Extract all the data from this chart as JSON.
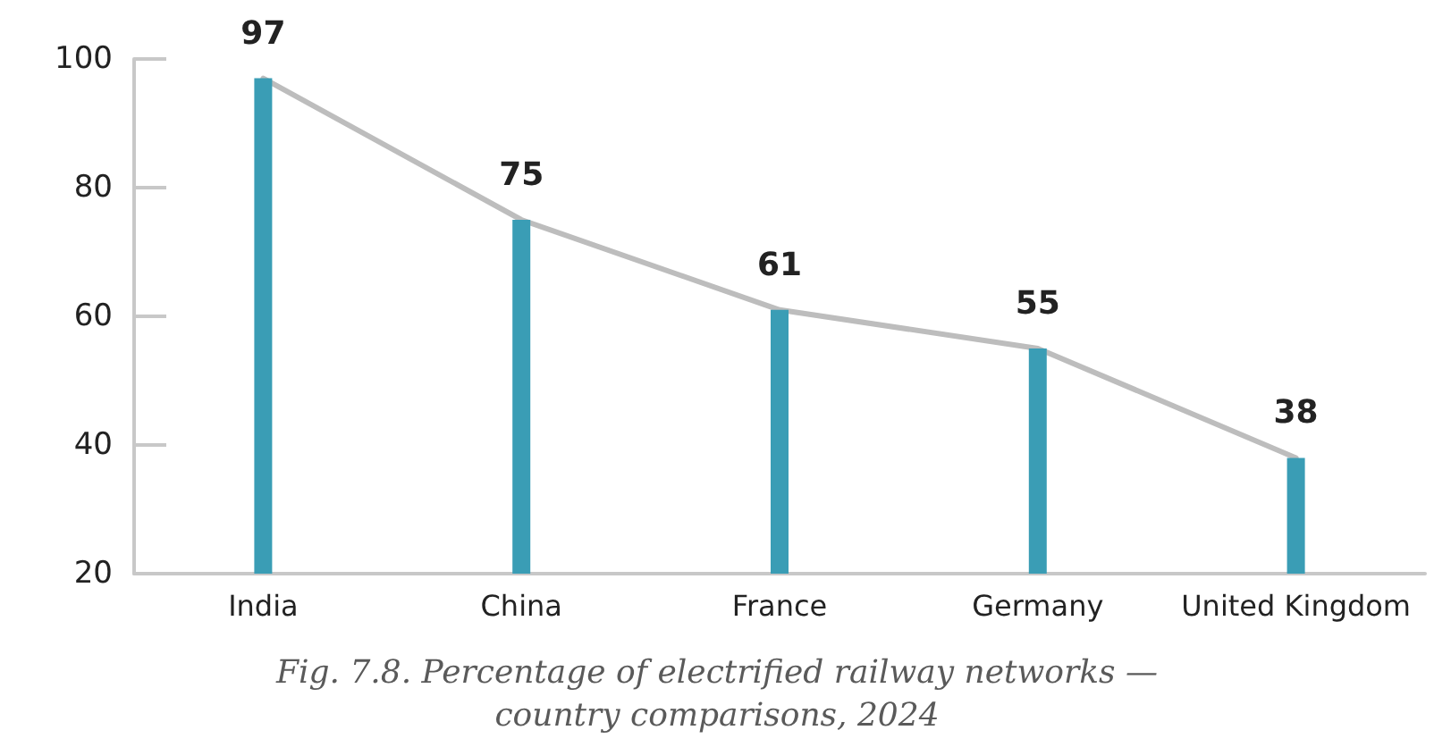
{
  "chart_data": {
    "type": "bar",
    "categories": [
      "India",
      "China",
      "France",
      "Germany",
      "United Kingdom"
    ],
    "series": [
      {
        "color": "#3a9db5",
        "values": [
          97,
          75,
          61,
          55,
          38
        ],
        "value_labels": [
          "97",
          "75",
          "61",
          "55",
          "38"
        ]
      },
      {
        "type": "line",
        "color": "#bdbdbd",
        "values": [
          97,
          75,
          61,
          55,
          38
        ]
      }
    ],
    "ylim": [
      20,
      100
    ],
    "yticks": [
      20,
      40,
      60,
      80,
      100
    ],
    "annotations": [
      "Fig. 7.8. Percentage of electrified railway networks — country comparisons, 2024"
    ]
  }
}
